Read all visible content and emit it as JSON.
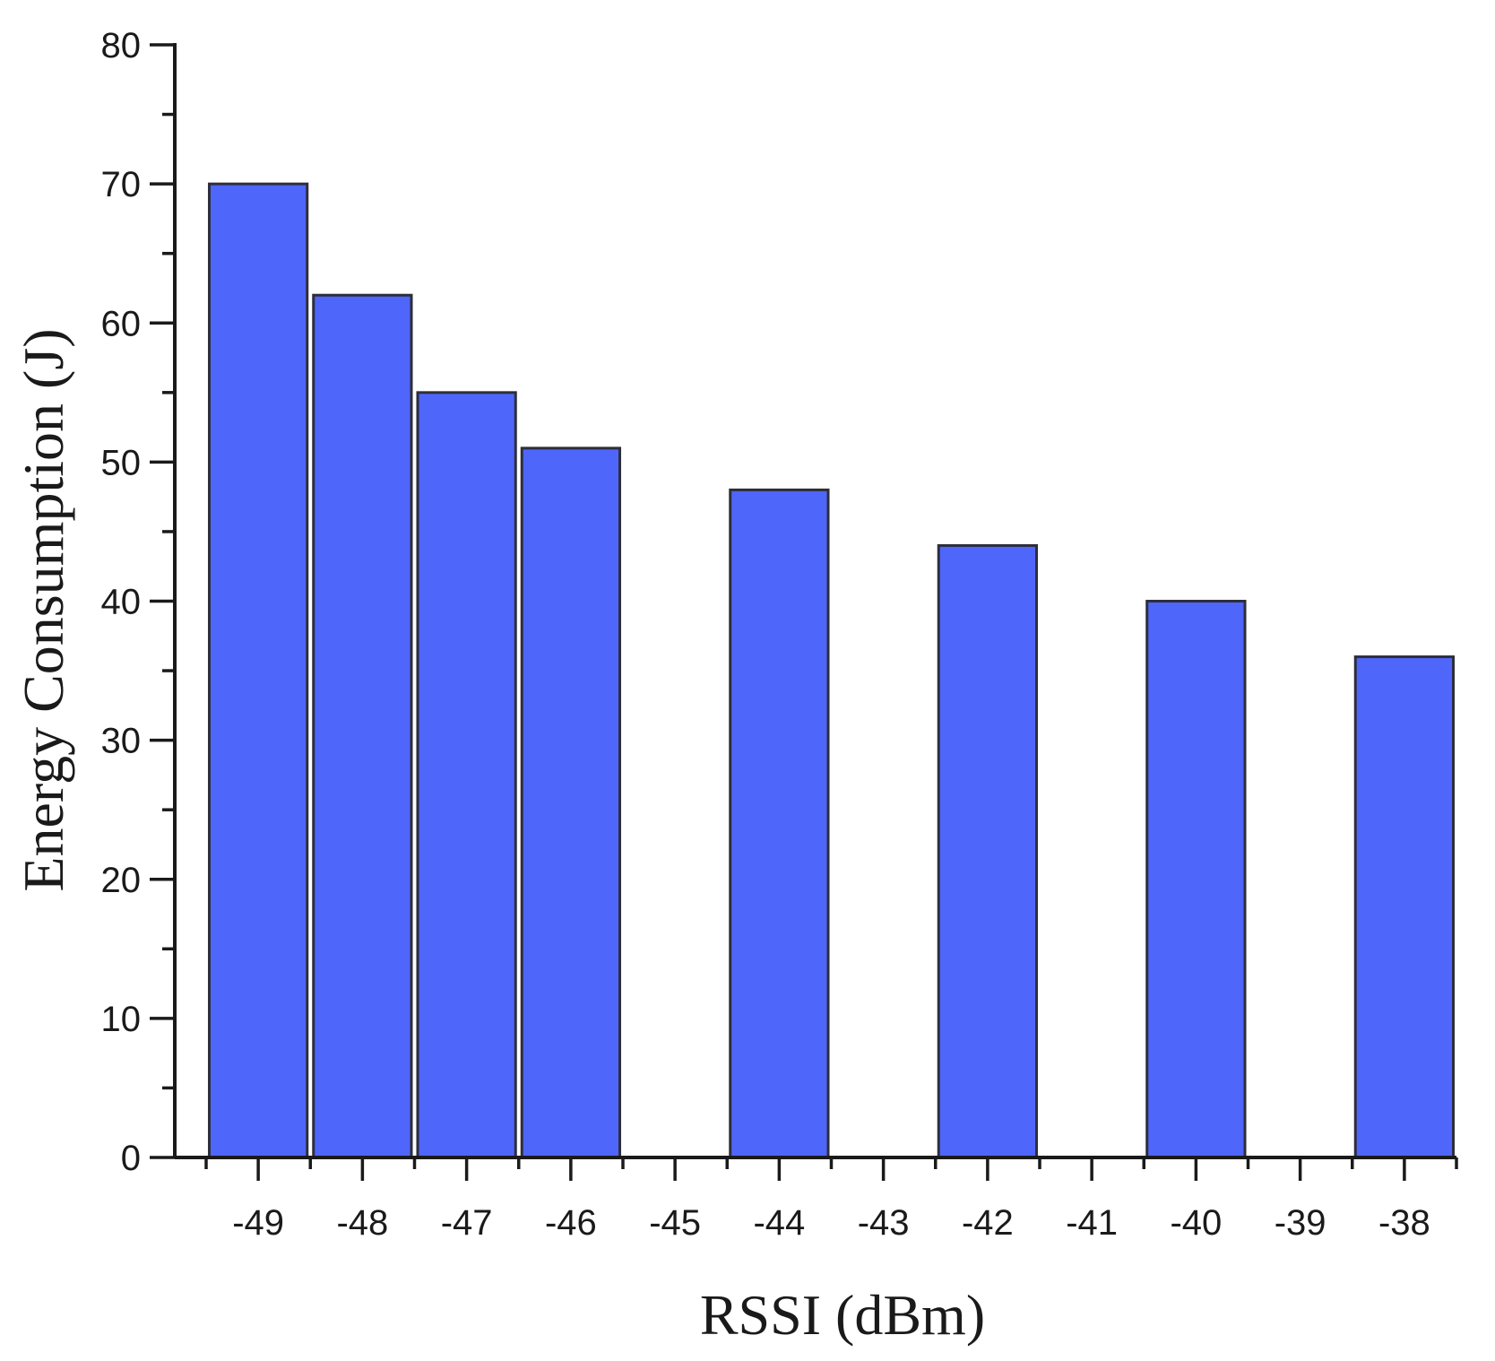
{
  "chart_data": {
    "type": "bar",
    "title": "",
    "xlabel": "RSSI (dBm)",
    "ylabel": "Energy Consumption (J)",
    "categories": [
      "-49",
      "-48",
      "-47",
      "-46",
      "-45",
      "-44",
      "-43",
      "-42",
      "-41",
      "-40",
      "-39",
      "-38"
    ],
    "x": [
      -49,
      -48,
      -47,
      -46,
      -45,
      -44,
      -43,
      -42,
      -41,
      -40,
      -39,
      -38
    ],
    "bars": [
      {
        "x": -49,
        "value": 70
      },
      {
        "x": -48,
        "value": 62
      },
      {
        "x": -47,
        "value": 55
      },
      {
        "x": -46,
        "value": 51
      },
      {
        "x": -44,
        "value": 48
      },
      {
        "x": -42,
        "value": 44
      },
      {
        "x": -40,
        "value": 40
      },
      {
        "x": -38,
        "value": 36
      }
    ],
    "xlim": [
      -49.5,
      -37.5
    ],
    "ylim": [
      0,
      80
    ],
    "yticks": [
      0,
      10,
      20,
      30,
      40,
      50,
      60,
      70,
      80
    ],
    "grid": false,
    "bar_color": "#4f66fb",
    "bar_edge_color": "#2e2e3a"
  }
}
